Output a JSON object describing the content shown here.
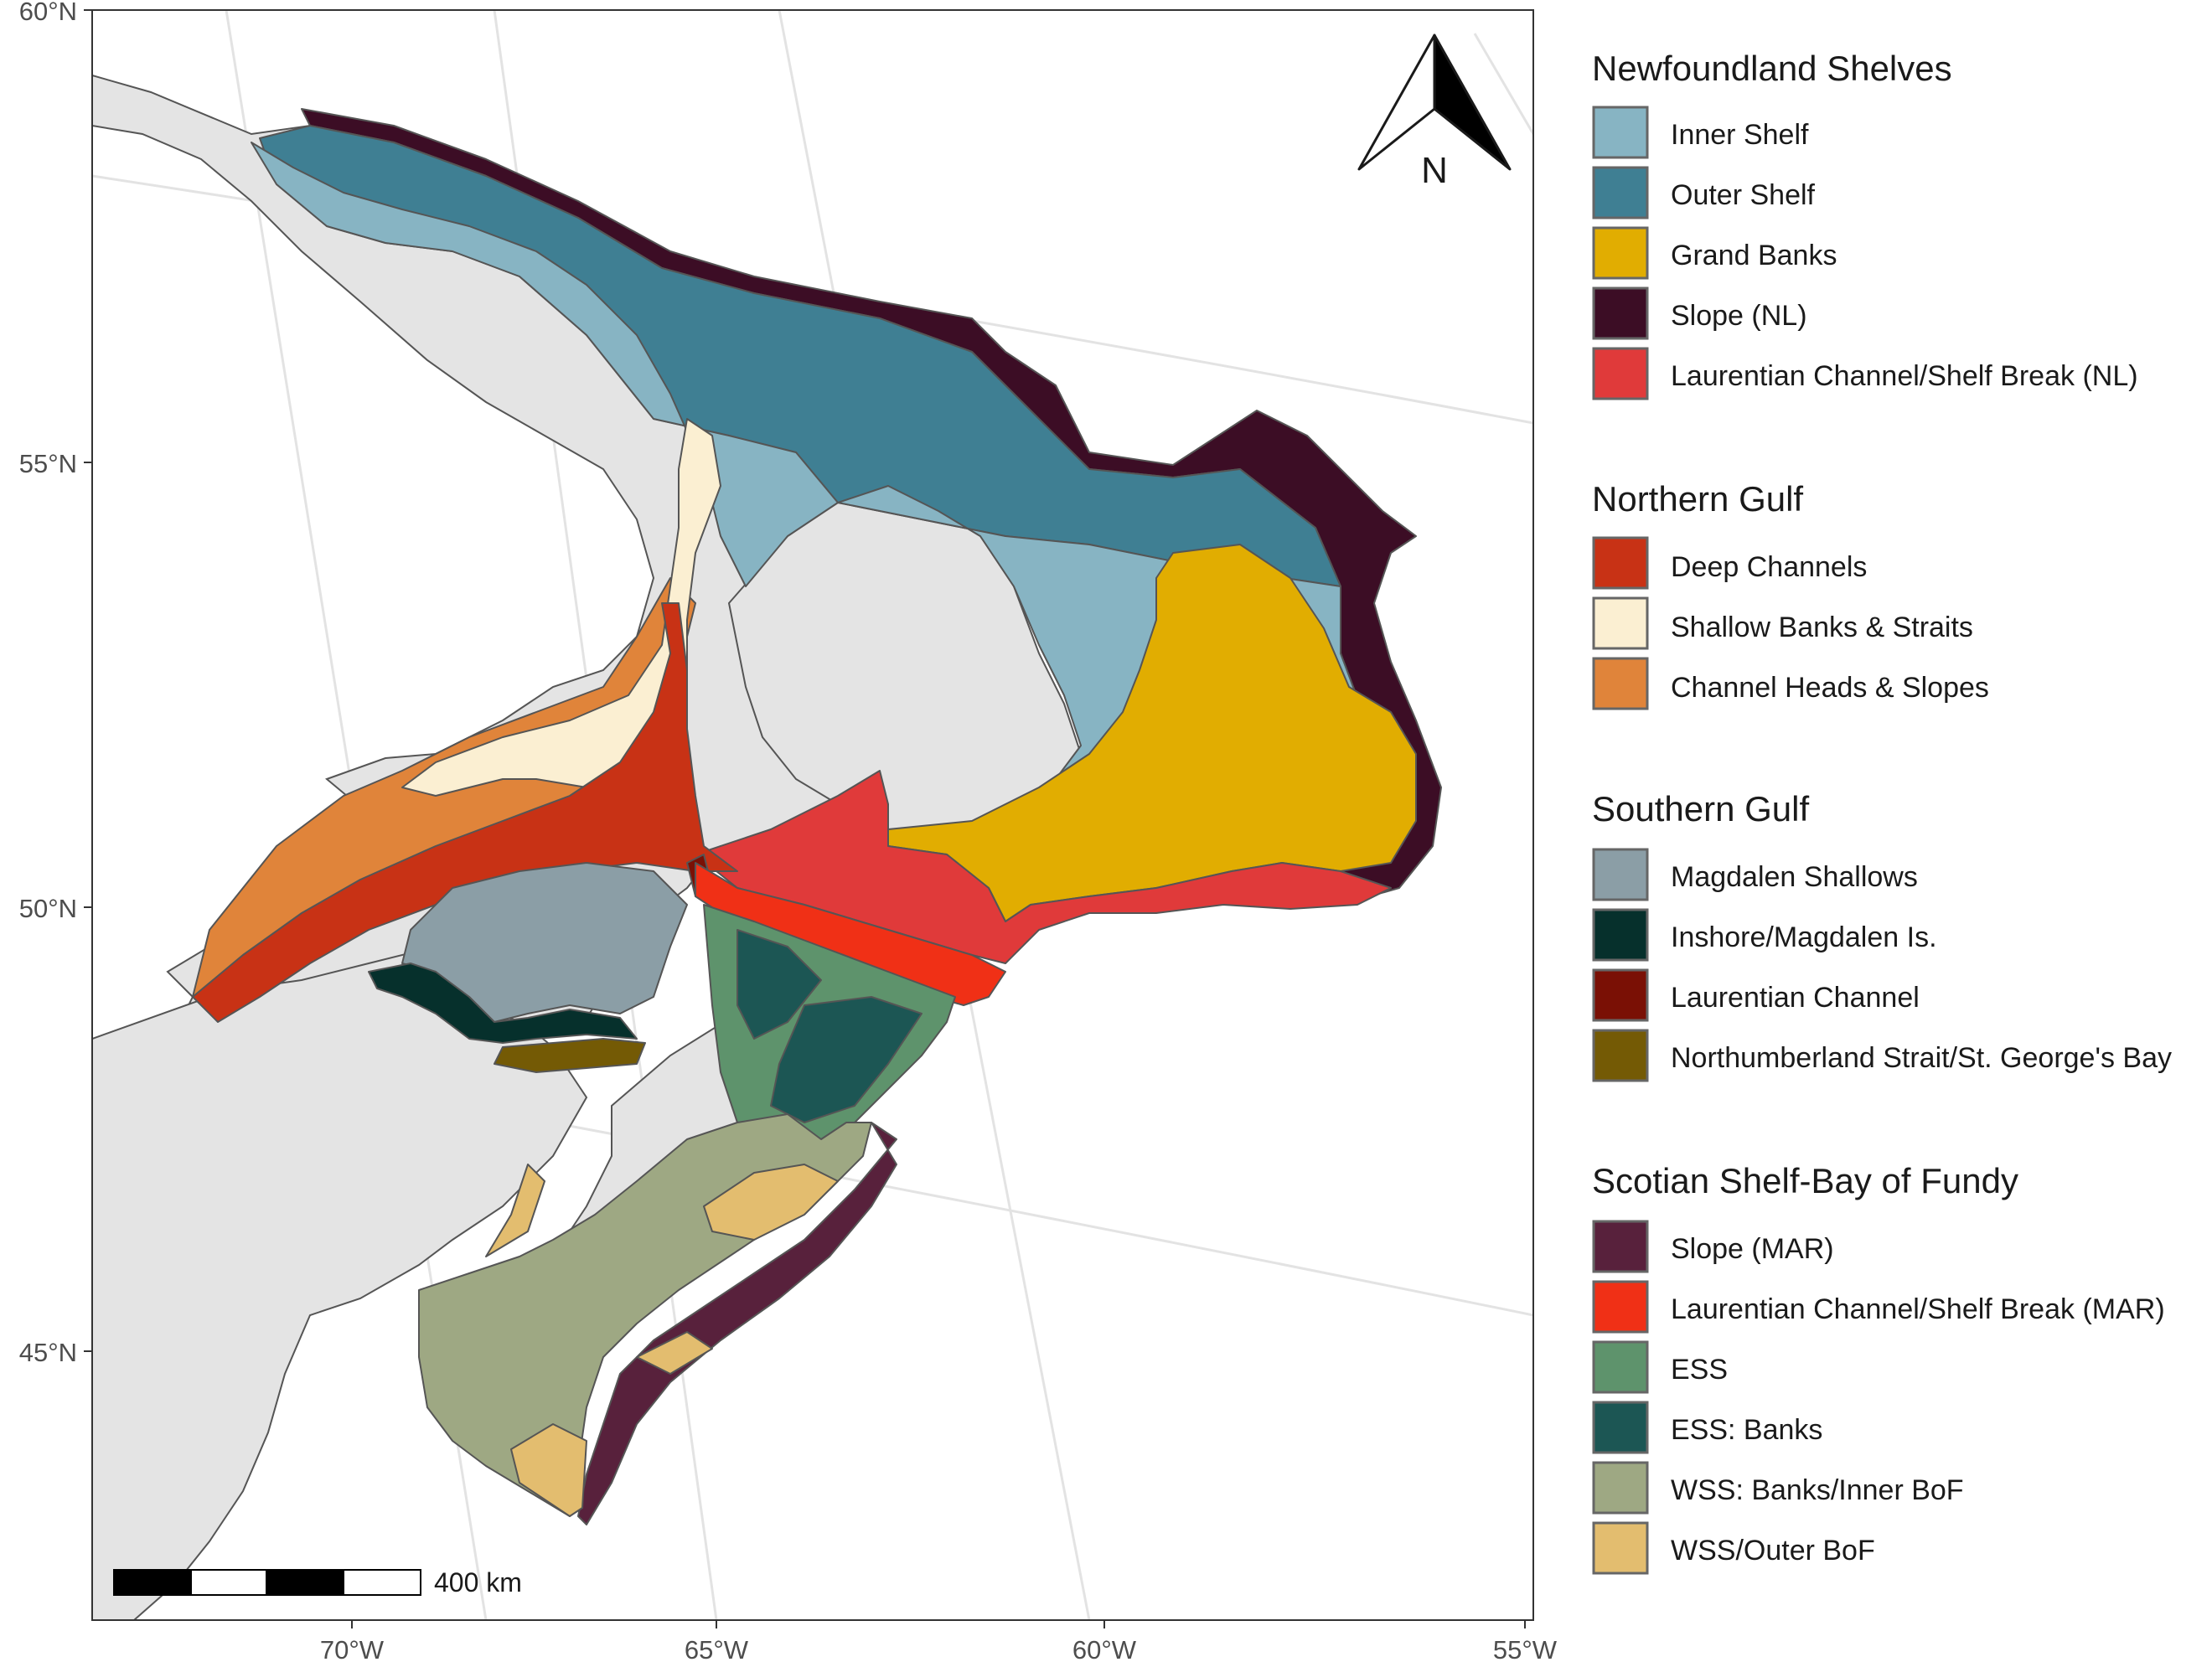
{
  "axes": {
    "lat_labels": [
      "60°N",
      "55°N",
      "50°N",
      "45°N"
    ],
    "lon_labels": [
      "70°W",
      "65°W",
      "60°W",
      "55°W"
    ]
  },
  "north_arrow": {
    "label": "N"
  },
  "scale_bar": {
    "label": "400 km"
  },
  "legend": {
    "groups": [
      {
        "title": "Newfoundland Shelves",
        "items": [
          {
            "label": "Inner Shelf",
            "color": "#87b4c3"
          },
          {
            "label": "Outer Shelf",
            "color": "#3f7f93"
          },
          {
            "label": "Grand Banks",
            "color": "#e1ad01"
          },
          {
            "label": "Slope (NL)",
            "color": "#3c0d25"
          },
          {
            "label": "Laurentian Channel/Shelf Break (NL)",
            "color": "#e03a3a"
          }
        ]
      },
      {
        "title": "Northern Gulf",
        "items": [
          {
            "label": "Deep Channels",
            "color": "#c83215"
          },
          {
            "label": "Shallow Banks & Straits",
            "color": "#fbefd2"
          },
          {
            "label": "Channel Heads & Slopes",
            "color": "#e0843a"
          }
        ]
      },
      {
        "title": "Southern Gulf",
        "items": [
          {
            "label": "Magdalen Shallows",
            "color": "#8b9ea6"
          },
          {
            "label": "Inshore/Magdalen Is.",
            "color": "#06302c"
          },
          {
            "label": "Laurentian Channel",
            "color": "#7a1005"
          },
          {
            "label": "Northumberland Strait/St. George's Bay",
            "color": "#745a05"
          }
        ]
      },
      {
        "title": "Scotian Shelf-Bay of Fundy",
        "items": [
          {
            "label": "Slope (MAR)",
            "color": "#58213c"
          },
          {
            "label": "Laurentian Channel/Shelf Break (MAR)",
            "color": "#f03016"
          },
          {
            "label": "ESS",
            "color": "#5e936c"
          },
          {
            "label": "ESS: Banks",
            "color": "#1c5654"
          },
          {
            "label": "WSS: Banks/Inner BoF",
            "color": "#9ea883"
          },
          {
            "label": "WSS/Outer BoF",
            "color": "#e3bd6f"
          }
        ]
      }
    ]
  }
}
